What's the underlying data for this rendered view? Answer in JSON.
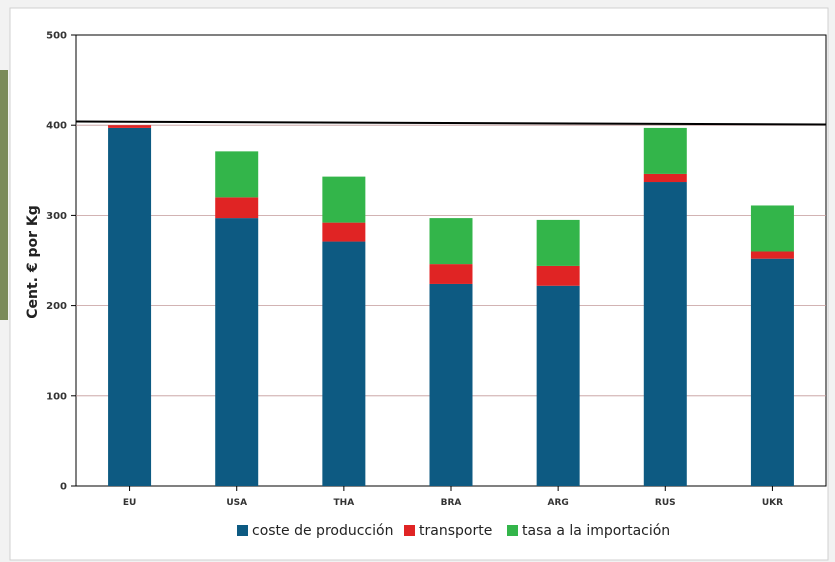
{
  "chart_data": {
    "type": "bar",
    "stacked": true,
    "title": "",
    "xlabel": "",
    "ylabel": "Cent. € por Kg",
    "ylim": [
      0,
      500
    ],
    "yticks": [
      "0",
      "100",
      "200",
      "300",
      "400",
      "500"
    ],
    "categories": [
      "EU",
      "USA",
      "THA",
      "BRA",
      "ARG",
      "RUS",
      "UKR"
    ],
    "series": [
      {
        "name": "coste de producción",
        "color": "#0d5a82",
        "values": [
          397,
          297,
          271,
          224,
          222,
          337,
          252
        ]
      },
      {
        "name": "transporte",
        "color": "#e02424",
        "values": [
          3,
          23,
          21,
          22,
          22,
          9,
          8
        ]
      },
      {
        "name": "tasa a la importación",
        "color": "#33b54a",
        "values": [
          0,
          51,
          51,
          51,
          51,
          51,
          51
        ]
      }
    ],
    "reference_line": 403,
    "grid": "horizontal",
    "legend_position": "bottom"
  }
}
